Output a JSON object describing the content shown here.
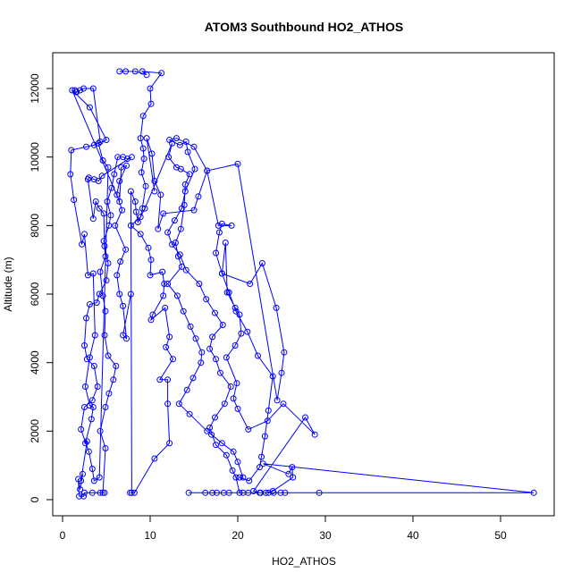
{
  "chart_data": {
    "type": "line",
    "title": "ATOM3 Southbound HO2_ATHOS",
    "xlabel": "HO2_ATHOS",
    "ylabel": "Altitude (m)",
    "xlim": [
      0,
      56
    ],
    "ylim": [
      -200,
      13000
    ],
    "xticks": [
      0,
      10,
      20,
      30,
      40,
      50
    ],
    "yticks": [
      0,
      2000,
      4000,
      6000,
      8000,
      10000,
      12000
    ],
    "grid": false,
    "legend": "none",
    "color": "#0000ff",
    "marker": "open-circle",
    "series": [
      {
        "values": [
          [
            6.5,
            12500
          ],
          [
            7.2,
            12500
          ],
          [
            8.3,
            12500
          ],
          [
            9.6,
            12400
          ],
          [
            9.1,
            12500
          ],
          [
            11.3,
            12450
          ],
          [
            10.0,
            12000
          ],
          [
            10.1,
            11550
          ],
          [
            9.2,
            11200
          ],
          [
            8.9,
            10550
          ],
          [
            9.2,
            10250
          ],
          [
            9.3,
            9950
          ],
          [
            9.0,
            9550
          ],
          [
            9.5,
            9150
          ],
          [
            9.1,
            8500
          ],
          [
            8.9,
            8250
          ],
          [
            7.8,
            8000
          ],
          [
            8.9,
            7750
          ],
          [
            9.8,
            7350
          ],
          [
            10.1,
            7000
          ],
          [
            10.0,
            6550
          ],
          [
            11.4,
            6650
          ],
          [
            11.6,
            6300
          ],
          [
            11.5,
            5950
          ],
          [
            10.3,
            5400
          ],
          [
            10.1,
            5250
          ],
          [
            11.7,
            5600
          ],
          [
            12.2,
            4750
          ],
          [
            11.8,
            4450
          ],
          [
            12.6,
            4100
          ],
          [
            11.1,
            3500
          ],
          [
            12.0,
            3500
          ],
          [
            12.0,
            2800
          ],
          [
            12.2,
            1650
          ],
          [
            10.5,
            1200
          ],
          [
            8.2,
            200
          ],
          [
            7.7,
            200
          ],
          [
            7.9,
            200
          ],
          [
            7.8,
            9000
          ],
          [
            8.3,
            8700
          ],
          [
            8.4,
            8400
          ],
          [
            8.6,
            8100
          ],
          [
            9.4,
            8500
          ],
          [
            12.5,
            10400
          ],
          [
            12.1,
            10000
          ],
          [
            13.0,
            9700
          ],
          [
            13.5,
            9650
          ],
          [
            14.5,
            9500
          ],
          [
            14.0,
            9200
          ],
          [
            13.9,
            8600
          ],
          [
            13.5,
            7900
          ],
          [
            12.9,
            7500
          ],
          [
            13.2,
            7100
          ],
          [
            13.6,
            6800
          ],
          [
            12.0,
            6300
          ],
          [
            13.1,
            5950
          ],
          [
            13.8,
            5500
          ],
          [
            14.6,
            5050
          ],
          [
            15.2,
            4700
          ],
          [
            15.9,
            4300
          ],
          [
            15.8,
            4000
          ],
          [
            14.9,
            3550
          ],
          [
            14.2,
            3200
          ],
          [
            13.3,
            2800
          ],
          [
            14.5,
            2500
          ],
          [
            16.5,
            2000
          ],
          [
            17.0,
            1900
          ],
          [
            18.2,
            1650
          ],
          [
            19.5,
            1400
          ],
          [
            20.0,
            1100
          ],
          [
            20.6,
            650
          ],
          [
            20.2,
            650
          ],
          [
            21.3,
            550
          ],
          [
            22.5,
            950
          ],
          [
            22.7,
            1250
          ],
          [
            23.1,
            1850
          ],
          [
            23.5,
            2600
          ],
          [
            24.0,
            3600
          ],
          [
            22.3,
            4200
          ],
          [
            21.1,
            4900
          ],
          [
            19.8,
            5500
          ],
          [
            19.0,
            6050
          ],
          [
            18.2,
            6600
          ],
          [
            17.5,
            7200
          ],
          [
            17.9,
            7800
          ],
          [
            18.2,
            8050
          ],
          [
            19.3,
            8000
          ],
          [
            17.8,
            8000
          ],
          [
            16.5,
            9600
          ],
          [
            15.0,
            10300
          ],
          [
            13.0,
            10550
          ],
          [
            12.2,
            10500
          ],
          [
            13.4,
            10350
          ],
          [
            14.1,
            10450
          ],
          [
            14.3,
            10150
          ],
          [
            15.1,
            9650
          ],
          [
            14.0,
            9000
          ],
          [
            13.6,
            8500
          ],
          [
            12.8,
            8150
          ],
          [
            12.0,
            7800
          ],
          [
            12.5,
            7450
          ],
          [
            13.4,
            7150
          ],
          [
            14.1,
            6700
          ],
          [
            15.6,
            6300
          ],
          [
            16.4,
            5850
          ],
          [
            17.4,
            5450
          ],
          [
            18.3,
            5100
          ],
          [
            17.1,
            4750
          ],
          [
            16.8,
            4400
          ],
          [
            17.5,
            4100
          ],
          [
            18.0,
            3700
          ],
          [
            19.2,
            3300
          ],
          [
            18.5,
            2800
          ],
          [
            17.4,
            2400
          ],
          [
            16.8,
            2100
          ],
          [
            17.5,
            1600
          ],
          [
            18.7,
            1300
          ],
          [
            19.4,
            850
          ],
          [
            19.8,
            650
          ],
          [
            20.2,
            200
          ],
          [
            19.0,
            200
          ],
          [
            17.6,
            200
          ],
          [
            16.3,
            200
          ],
          [
            14.4,
            200
          ],
          [
            17.1,
            200
          ],
          [
            18.4,
            200
          ],
          [
            20.6,
            200
          ],
          [
            21.2,
            200
          ],
          [
            22.6,
            200
          ],
          [
            23.5,
            200
          ],
          [
            24.1,
            200
          ],
          [
            24.9,
            200
          ],
          [
            25.4,
            200
          ],
          [
            29.3,
            200
          ],
          [
            53.8,
            200
          ],
          [
            22.9,
            1050
          ],
          [
            25.8,
            750
          ],
          [
            26.2,
            950
          ],
          [
            26.3,
            650
          ],
          [
            24.0,
            250
          ],
          [
            23.2,
            200
          ],
          [
            22.5,
            200
          ],
          [
            21.8,
            250
          ],
          [
            27.7,
            2400
          ],
          [
            28.8,
            1900
          ],
          [
            25.2,
            2800
          ],
          [
            23.4,
            2300
          ],
          [
            21.2,
            2050
          ],
          [
            20.0,
            2650
          ],
          [
            19.5,
            2950
          ],
          [
            19.9,
            3400
          ],
          [
            18.7,
            4150
          ],
          [
            19.7,
            4500
          ],
          [
            20.4,
            4850
          ],
          [
            20.2,
            5400
          ],
          [
            19.7,
            5600
          ],
          [
            18.8,
            6050
          ],
          [
            18.6,
            7500
          ],
          [
            18.2,
            6600
          ],
          [
            21.4,
            6300
          ],
          [
            22.8,
            6900
          ],
          [
            24.4,
            5600
          ],
          [
            25.3,
            4300
          ],
          [
            25.0,
            3700
          ],
          [
            24.5,
            2900
          ],
          [
            20.0,
            9800
          ],
          [
            16.5,
            9600
          ],
          [
            15.5,
            8850
          ],
          [
            15.0,
            8450
          ],
          [
            11.5,
            8350
          ],
          [
            10.9,
            7900
          ],
          [
            11.2,
            8900
          ],
          [
            10.5,
            9300
          ],
          [
            10.2,
            10100
          ],
          [
            9.6,
            10550
          ],
          [
            10.5,
            9000
          ]
        ]
      },
      {
        "values": [
          [
            1.4,
            11950
          ],
          [
            1.5,
            11900
          ],
          [
            1.6,
            11900
          ],
          [
            2.0,
            11950
          ],
          [
            2.4,
            12000
          ],
          [
            3.5,
            12000
          ],
          [
            4.3,
            10450
          ],
          [
            3.6,
            10350
          ],
          [
            2.7,
            10300
          ],
          [
            1.0,
            10200
          ],
          [
            0.9,
            9500
          ],
          [
            1.3,
            8750
          ],
          [
            2.2,
            7450
          ],
          [
            2.5,
            7750
          ],
          [
            2.9,
            6550
          ],
          [
            3.5,
            6600
          ],
          [
            3.7,
            4800
          ],
          [
            3.1,
            4150
          ],
          [
            2.6,
            3300
          ],
          [
            3.1,
            2750
          ],
          [
            3.5,
            2700
          ],
          [
            3.3,
            2350
          ],
          [
            2.6,
            1650
          ],
          [
            2.8,
            1700
          ],
          [
            2.1,
            550
          ],
          [
            2.3,
            750
          ],
          [
            2.0,
            300
          ],
          [
            1.8,
            600
          ],
          [
            1.9,
            100
          ],
          [
            2.4,
            100
          ],
          [
            2.5,
            200
          ],
          [
            3.4,
            200
          ],
          [
            4.3,
            200
          ],
          [
            4.8,
            200
          ],
          [
            4.6,
            200
          ],
          [
            4.9,
            1500
          ],
          [
            4.3,
            2000
          ],
          [
            4.9,
            2700
          ],
          [
            5.3,
            3100
          ],
          [
            5.8,
            3500
          ],
          [
            6.1,
            3900
          ],
          [
            5.2,
            4200
          ],
          [
            4.8,
            4800
          ],
          [
            4.9,
            5500
          ],
          [
            4.6,
            5950
          ],
          [
            4.3,
            6650
          ],
          [
            4.9,
            7100
          ],
          [
            4.7,
            7550
          ],
          [
            5.3,
            8000
          ],
          [
            5.5,
            8300
          ],
          [
            5.1,
            8700
          ],
          [
            5.6,
            9100
          ],
          [
            5.9,
            9500
          ],
          [
            6.3,
            10000
          ],
          [
            6.9,
            10000
          ],
          [
            7.4,
            9950
          ],
          [
            7.9,
            10000
          ],
          [
            4.5,
            9450
          ],
          [
            4.1,
            9300
          ],
          [
            3.6,
            9350
          ],
          [
            3.0,
            9400
          ],
          [
            2.9,
            9350
          ],
          [
            3.5,
            8200
          ],
          [
            3.8,
            8700
          ],
          [
            4.2,
            8500
          ],
          [
            4.7,
            8350
          ],
          [
            4.8,
            7400
          ],
          [
            5.2,
            6900
          ],
          [
            5.0,
            6400
          ],
          [
            4.2,
            6000
          ],
          [
            3.9,
            5750
          ],
          [
            3.1,
            5700
          ],
          [
            2.7,
            5300
          ],
          [
            2.5,
            4500
          ],
          [
            2.8,
            4100
          ],
          [
            3.6,
            3900
          ],
          [
            4.0,
            3300
          ],
          [
            3.4,
            2900
          ],
          [
            2.5,
            2700
          ],
          [
            2.1,
            2050
          ],
          [
            3.0,
            1400
          ],
          [
            3.4,
            900
          ],
          [
            3.6,
            550
          ],
          [
            4.2,
            650
          ],
          [
            5.2,
            9700
          ],
          [
            4.6,
            9900
          ],
          [
            4.1,
            10400
          ],
          [
            5.0,
            10500
          ],
          [
            3.1,
            11450
          ],
          [
            1.1,
            11950
          ],
          [
            6.5,
            8700
          ],
          [
            6.7,
            9700
          ],
          [
            7.3,
            9750
          ],
          [
            6.5,
            9300
          ],
          [
            6.2,
            8900
          ],
          [
            6.8,
            8450
          ],
          [
            6.0,
            8000
          ],
          [
            7.2,
            7300
          ],
          [
            6.6,
            6950
          ],
          [
            6.2,
            6550
          ],
          [
            6.5,
            6000
          ],
          [
            6.9,
            5650
          ],
          [
            7.3,
            4700
          ],
          [
            6.9,
            4800
          ],
          [
            7.8,
            6000
          ]
        ]
      }
    ]
  }
}
